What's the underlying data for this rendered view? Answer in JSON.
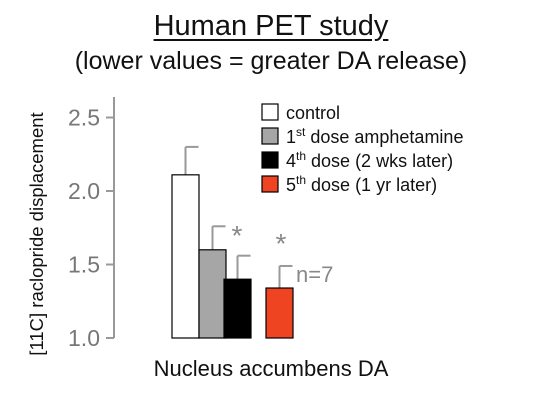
{
  "chart_data": {
    "type": "bar",
    "title": "Human PET study",
    "subtitle": "(lower values = greater DA release)",
    "xlabel": "Nucleus accumbens DA",
    "ylabel": "[11C] raclopride displacement",
    "ylim": [
      1.0,
      2.6
    ],
    "yticks": [
      "1.0",
      "1.5",
      "2.0",
      "2.5"
    ],
    "ytick_values": [
      1.0,
      1.5,
      2.0,
      2.5
    ],
    "grid": false,
    "legend_position": "top-right",
    "series": [
      {
        "name": "control",
        "base": "",
        "sup": "",
        "rest": "control",
        "color": "#ffffff",
        "value": 2.11,
        "error": 0.19
      },
      {
        "name": "1st dose amphetamine",
        "base": "1",
        "sup": "st",
        "rest": " dose amphetamine",
        "color": "#a6a6a6",
        "value": 1.6,
        "error": 0.16
      },
      {
        "name": "4th dose (2 wks later)",
        "base": "4",
        "sup": "th",
        "rest": " dose (2 wks later)",
        "color": "#000000",
        "value": 1.4,
        "error": 0.16
      },
      {
        "name": "5th dose (1 yr later)",
        "base": "5",
        "sup": "th",
        "rest": " dose (1 yr later)",
        "color": "#ee4422",
        "value": 1.34,
        "error": 0.15
      }
    ],
    "annotations": {
      "significance_marker": "*",
      "sample_size": "n=7"
    }
  }
}
